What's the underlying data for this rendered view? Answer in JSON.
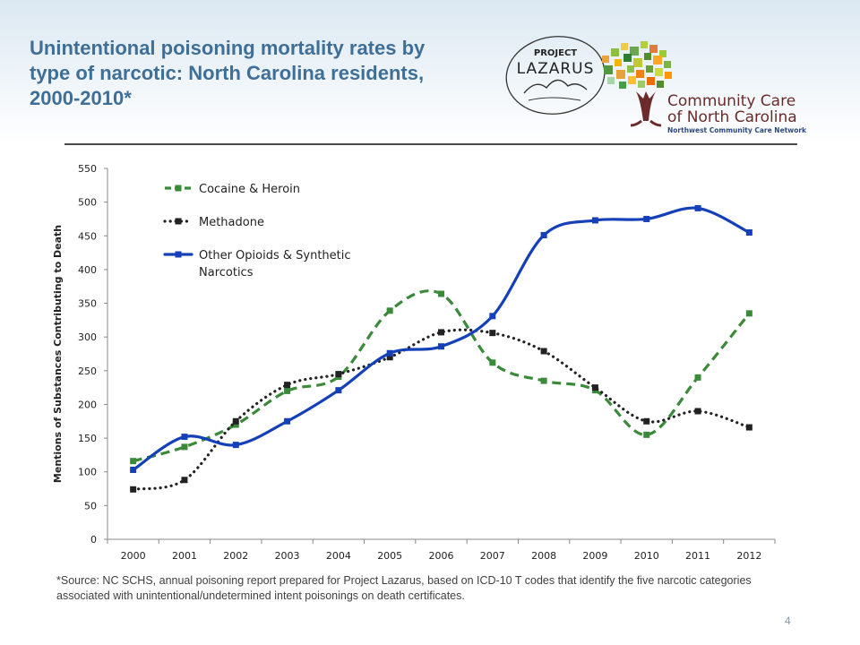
{
  "slide": {
    "title": "Unintentional poisoning mortality rates by type of narcotic: North Carolina residents, 2000-2010*",
    "source_note": "*Source: NC SCHS, annual poisoning report prepared for Project Lazarus, based on ICD-10 T codes that identify the five narcotic categories associated with unintentional/undetermined intent poisonings on death certificates.",
    "page_number": "4"
  },
  "logos": {
    "project_lazarus": {
      "line1": "PROJECT",
      "line2": "LAZARUS"
    },
    "community_care": {
      "line1": "Community Care",
      "line2": "of North Carolina",
      "line3": "Northwest Community Care Network"
    }
  },
  "colors": {
    "title": "#3f6f96",
    "cocaine_heroin": "#3a8a3a",
    "methadone": "#222222",
    "other_opioids": "#1540b8"
  },
  "chart_data": {
    "type": "line",
    "title": "",
    "xlabel": "",
    "ylabel": "Mentions of Substances Contributing to Death",
    "ylim": [
      0,
      550
    ],
    "yticks": [
      0,
      50,
      100,
      150,
      200,
      250,
      300,
      350,
      400,
      450,
      500,
      550
    ],
    "grid": false,
    "legend_position": "top-left",
    "x": [
      "2000",
      "2001",
      "2002",
      "2003",
      "2004",
      "2005",
      "2006",
      "2007",
      "2008",
      "2009",
      "2010",
      "2011",
      "2012"
    ],
    "series": [
      {
        "name": "Cocaine & Heroin",
        "style": "dashed",
        "color": "#3a8a3a",
        "values": [
          116,
          137,
          170,
          220,
          241,
          339,
          364,
          262,
          235,
          221,
          155,
          240,
          335
        ]
      },
      {
        "name": "Methadone",
        "style": "dotted",
        "color": "#222222",
        "values": [
          74,
          88,
          175,
          229,
          245,
          270,
          307,
          306,
          279,
          225,
          175,
          190,
          166
        ]
      },
      {
        "name": "Other Opioids & Synthetic Narcotics",
        "style": "solid",
        "color": "#1540b8",
        "values": [
          103,
          152,
          140,
          175,
          221,
          276,
          286,
          331,
          451,
          473,
          475,
          491,
          455
        ]
      }
    ]
  }
}
